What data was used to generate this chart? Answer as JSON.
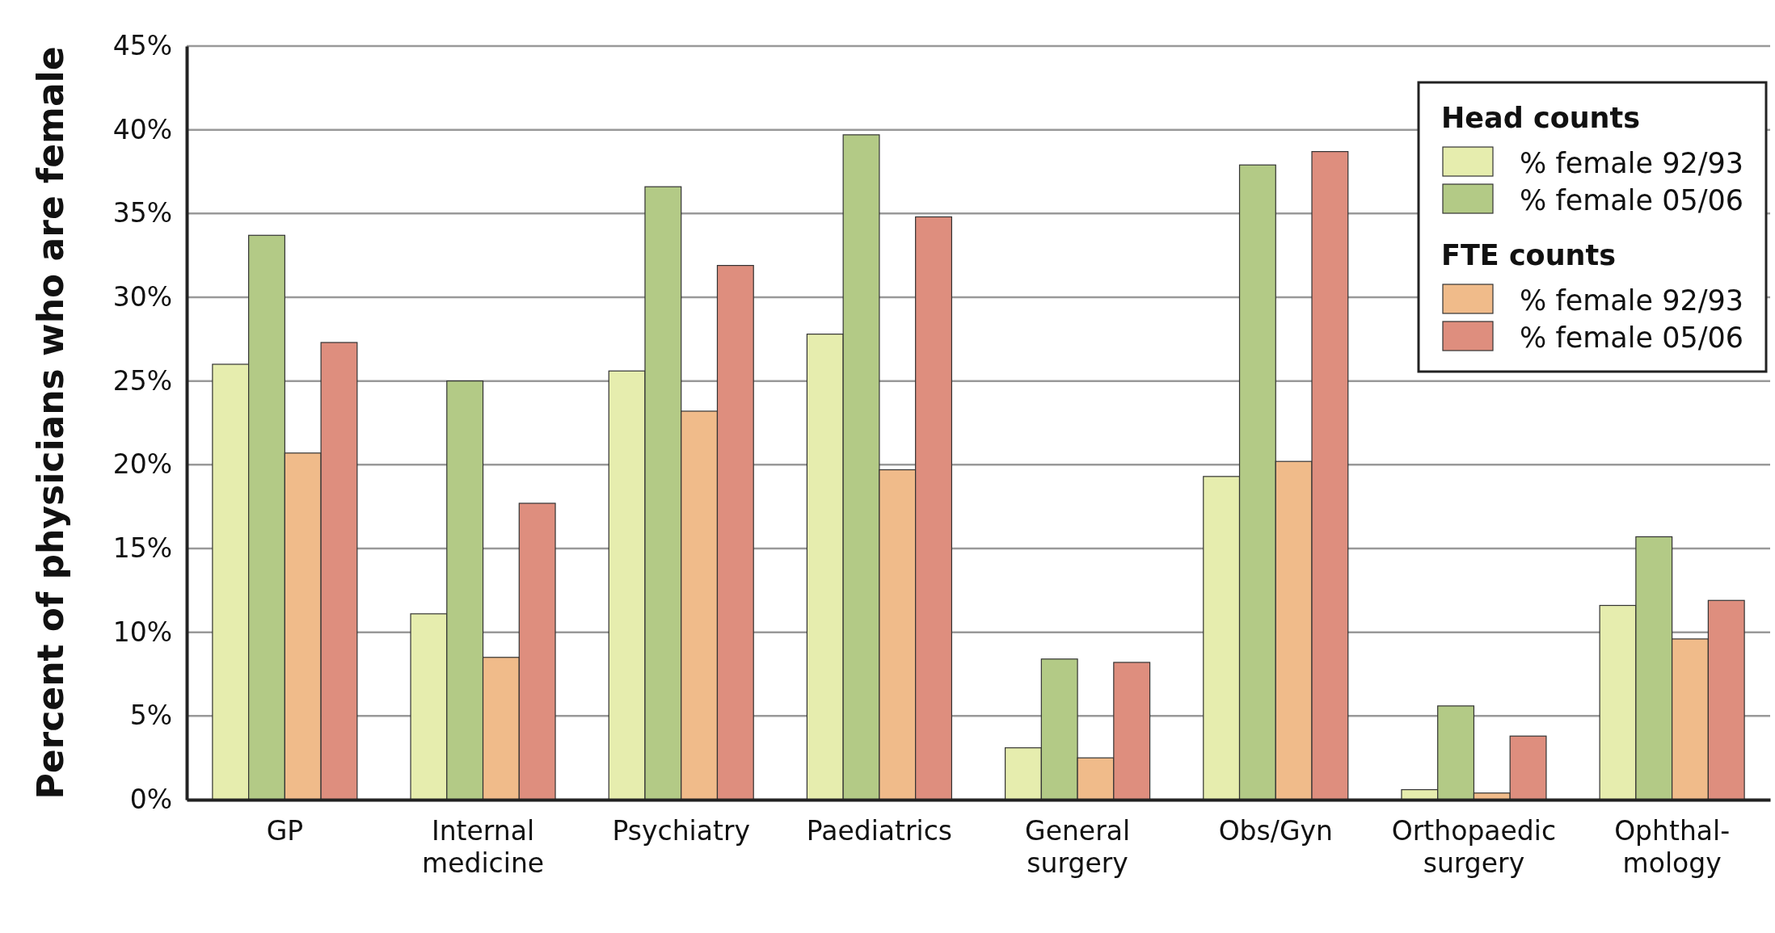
{
  "chart_data": {
    "type": "bar",
    "ylabel": "Percent of physicians who are female",
    "categories": [
      "GP",
      "Internal medicine",
      "Psychiatry",
      "Paediatrics",
      "General surgery",
      "Obs/Gyn",
      "Orthopaedic surgery",
      "Ophthal-mology"
    ],
    "series": [
      {
        "name": "% female 92/93",
        "color": "#e6edae",
        "values": [
          26.0,
          11.1,
          25.6,
          27.8,
          3.1,
          19.3,
          0.6,
          11.6
        ]
      },
      {
        "name": "% female 05/06",
        "color": "#b3ca86",
        "values": [
          33.7,
          25.0,
          36.6,
          39.7,
          8.4,
          37.9,
          5.6,
          15.7
        ]
      },
      {
        "name": "% female 92/93",
        "color": "#f0bb8a",
        "values": [
          20.7,
          8.5,
          23.2,
          19.7,
          2.5,
          20.2,
          0.4,
          9.6
        ]
      },
      {
        "name": "% female 05/06",
        "color": "#de8e7e",
        "values": [
          27.3,
          17.7,
          31.9,
          34.8,
          8.2,
          38.7,
          3.8,
          11.9
        ]
      }
    ],
    "annotations": [
      "Head counts",
      "FTE counts"
    ],
    "ylim": [
      0,
      45
    ],
    "yticks": [
      {
        "value": 0,
        "label": "0%"
      },
      {
        "value": 5,
        "label": "5%"
      },
      {
        "value": 10,
        "label": "10%"
      },
      {
        "value": 15,
        "label": "15%"
      },
      {
        "value": 20,
        "label": "20%"
      },
      {
        "value": 25,
        "label": "25%"
      },
      {
        "value": 30,
        "label": "30%"
      },
      {
        "value": 35,
        "label": "35%"
      },
      {
        "value": 40,
        "label": "40%"
      },
      {
        "value": 45,
        "label": "45%"
      }
    ],
    "grid": "y",
    "legend": "top right"
  }
}
